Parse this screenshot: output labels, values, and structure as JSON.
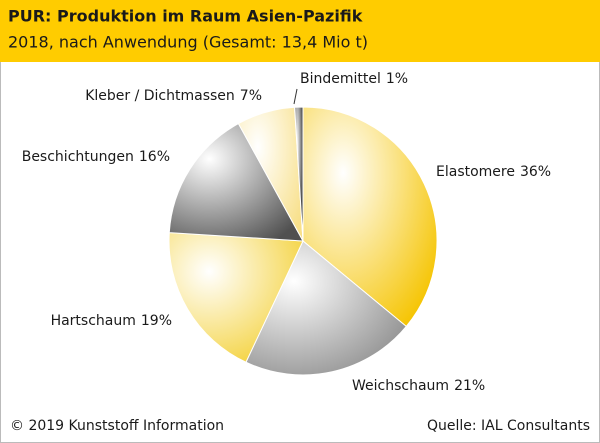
{
  "chart_data": {
    "type": "pie",
    "title": "PUR: Produktion im Raum Asien-Pazifik",
    "subtitle": "2018, nach Anwendung (Gesamt: 13,4 Mio t)",
    "categories": [
      "Elastomere",
      "Weichschaum",
      "Hartschaum",
      "Beschichtungen",
      "Kleber / Dichtmassen",
      "Bindemittel"
    ],
    "values": [
      36,
      21,
      19,
      16,
      7,
      1
    ],
    "value_labels": [
      "36%",
      "21%",
      "19%",
      "16%",
      "7%",
      "1%"
    ],
    "colors": [
      "#f5c400",
      "#8c8c8c",
      "#f3cf30",
      "#505050",
      "#f8e08a",
      "#1e1e1e"
    ],
    "copyright": "© 2019 Kunststoff Information",
    "source": "Quelle: IAL Consultants"
  }
}
